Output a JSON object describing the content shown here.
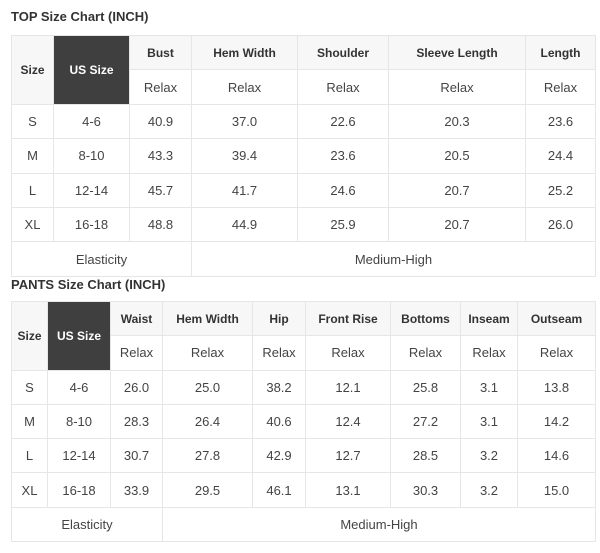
{
  "top": {
    "title": "TOP Size Chart (INCH)",
    "size_label": "Size",
    "us_size_label": "US Size",
    "columns": [
      "Bust",
      "Hem Width",
      "Shoulder",
      "Sleeve Length",
      "Length"
    ],
    "fit": [
      "Relax",
      "Relax",
      "Relax",
      "Relax",
      "Relax"
    ],
    "rows": [
      {
        "size": "S",
        "us": "4-6",
        "values": [
          "40.9",
          "37.0",
          "22.6",
          "20.3",
          "23.6"
        ]
      },
      {
        "size": "M",
        "us": "8-10",
        "values": [
          "43.3",
          "39.4",
          "23.6",
          "20.5",
          "24.4"
        ]
      },
      {
        "size": "L",
        "us": "12-14",
        "values": [
          "45.7",
          "41.7",
          "24.6",
          "20.7",
          "25.2"
        ]
      },
      {
        "size": "XL",
        "us": "16-18",
        "values": [
          "48.8",
          "44.9",
          "25.9",
          "20.7",
          "26.0"
        ]
      }
    ],
    "elasticity_label": "Elasticity",
    "elasticity_value": "Medium-High"
  },
  "pants": {
    "title": "PANTS Size Chart (INCH)",
    "size_label": "Size",
    "us_size_label": "US Size",
    "columns": [
      "Waist",
      "Hem Width",
      "Hip",
      "Front Rise",
      "Bottoms",
      "Inseam",
      "Outseam"
    ],
    "fit": [
      "Relax",
      "Relax",
      "Relax",
      "Relax",
      "Relax",
      "Relax",
      "Relax"
    ],
    "rows": [
      {
        "size": "S",
        "us": "4-6",
        "values": [
          "26.0",
          "25.0",
          "38.2",
          "12.1",
          "25.8",
          "3.1",
          "13.8"
        ]
      },
      {
        "size": "M",
        "us": "8-10",
        "values": [
          "28.3",
          "26.4",
          "40.6",
          "12.4",
          "27.2",
          "3.1",
          "14.2"
        ]
      },
      {
        "size": "L",
        "us": "12-14",
        "values": [
          "30.7",
          "27.8",
          "42.9",
          "12.7",
          "28.5",
          "3.2",
          "14.6"
        ]
      },
      {
        "size": "XL",
        "us": "16-18",
        "values": [
          "33.9",
          "29.5",
          "46.1",
          "13.1",
          "30.3",
          "3.2",
          "15.0"
        ]
      }
    ],
    "elasticity_label": "Elasticity",
    "elasticity_value": "Medium-High"
  }
}
